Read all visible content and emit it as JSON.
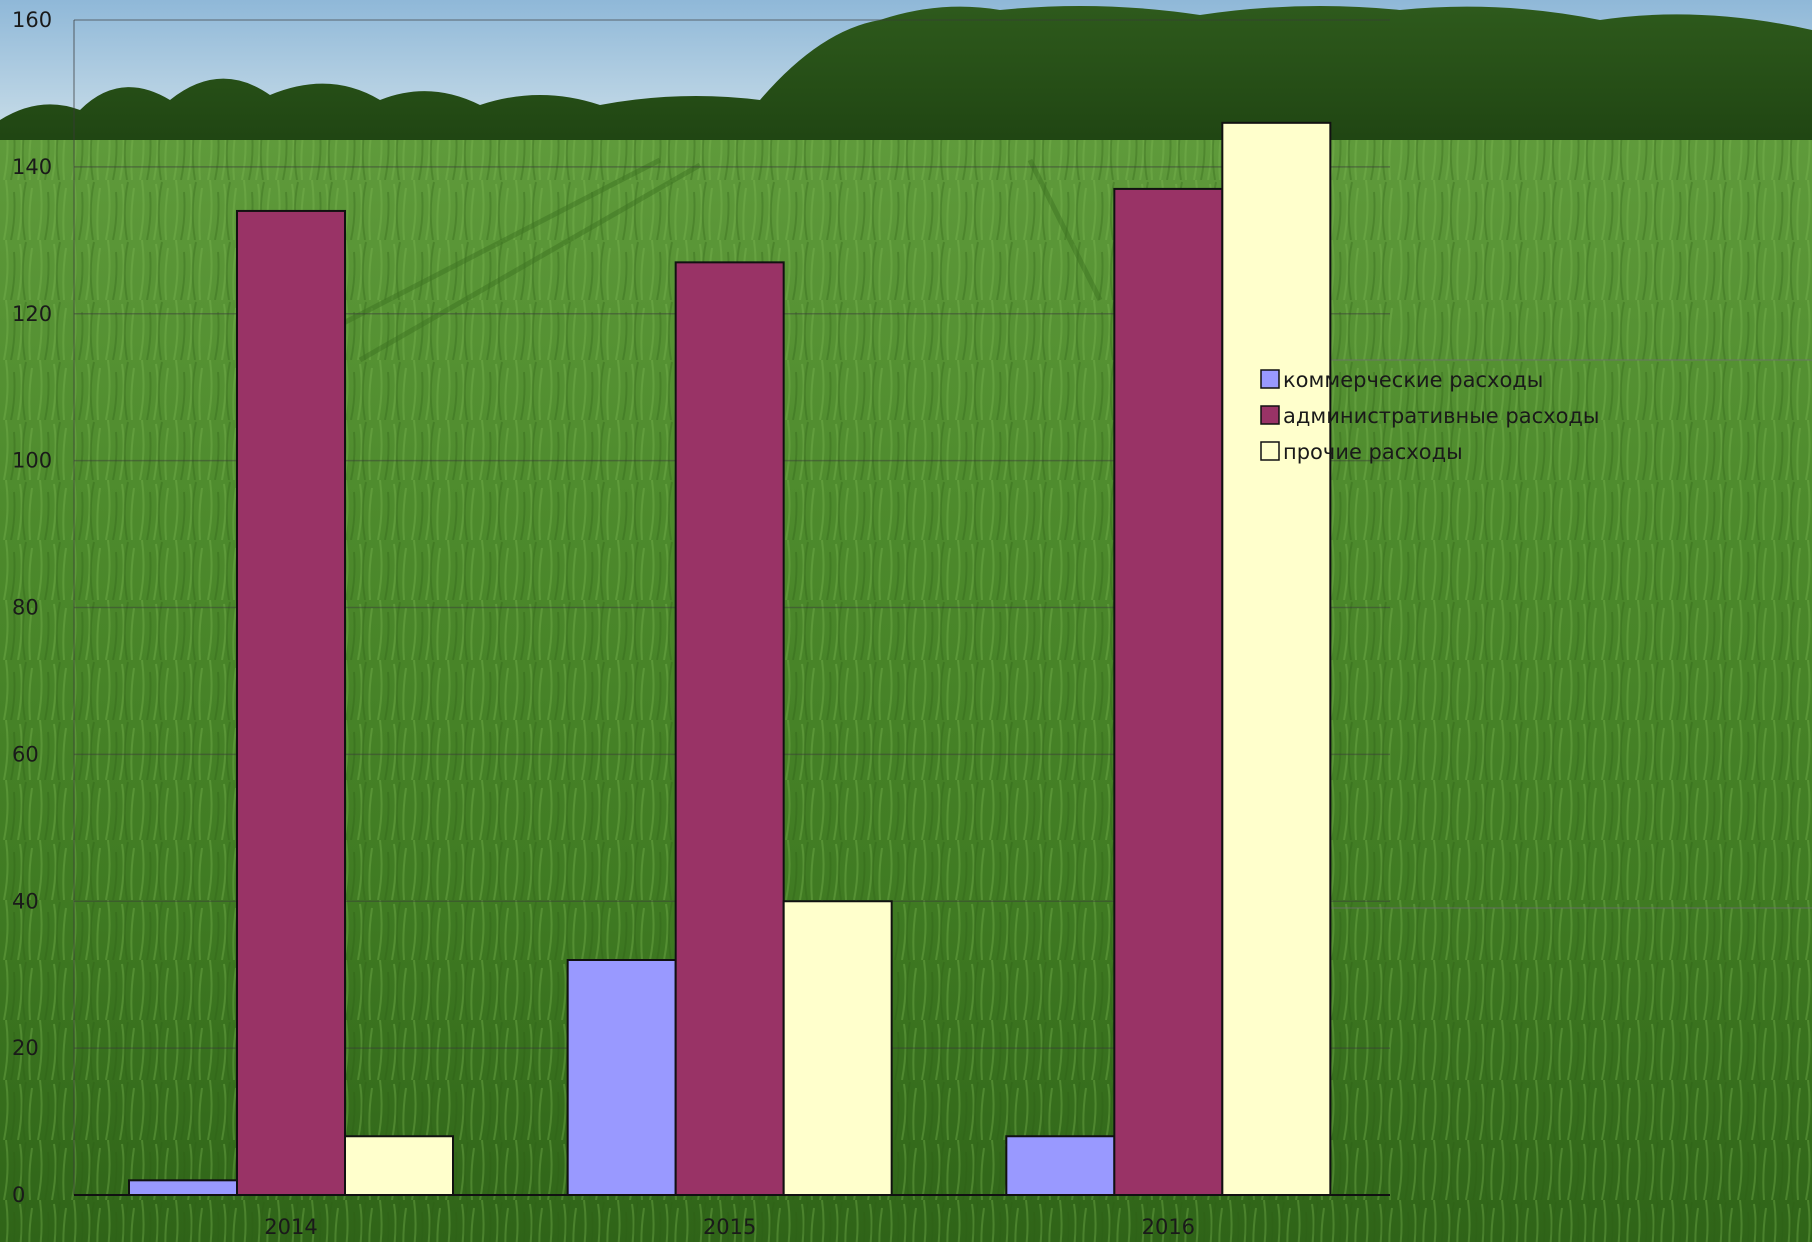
{
  "chart_data": {
    "type": "bar",
    "categories": [
      "2014",
      "2015",
      "2016"
    ],
    "series": [
      {
        "name": "коммерческие расходы",
        "values": [
          2,
          32,
          8
        ],
        "color": "#9999ff"
      },
      {
        "name": "административные расходы",
        "values": [
          134,
          127,
          137
        ],
        "color": "#993366"
      },
      {
        "name": "прочие расходы",
        "values": [
          8,
          40,
          146
        ],
        "color": "#ffffcc"
      }
    ],
    "ylim": [
      0,
      160
    ],
    "yticks": [
      0,
      20,
      40,
      60,
      80,
      100,
      120,
      140,
      160
    ],
    "grid": true,
    "legend_position": "right",
    "background": "green wheat field photo with tree line and sky"
  }
}
